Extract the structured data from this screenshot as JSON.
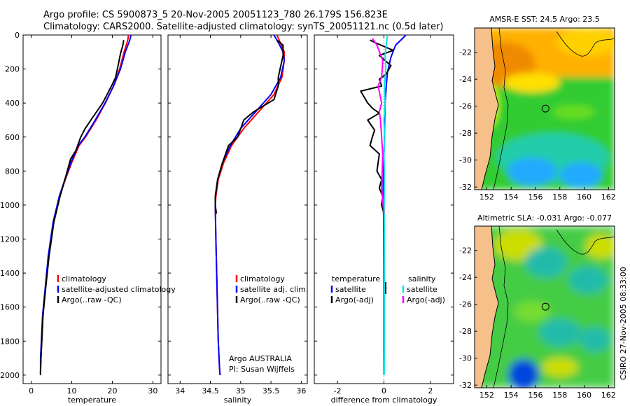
{
  "header": {
    "line1": "Argo profile: CS 5900873_5 20-Nov-2005 20051123_780 26.179S 156.823E",
    "line2": "Climatology: CARS2000. Satellite-adjusted climatology: synTS_20051121.nc (0.5d later)"
  },
  "side_stamp": "CSIRO 27-Nov-2005 08:33:00",
  "argo_note": {
    "line1": "Argo AUSTRALIA",
    "line2": "PI: Susan Wijffels"
  },
  "colors": {
    "climatology": "#ff0000",
    "satellite": "#0000ff",
    "argo": "#000000",
    "sal_satellite": "#00e5ee",
    "sal_argo": "#ff00ff",
    "land": "#f6c08a"
  },
  "chart_data": [
    {
      "id": "temperature",
      "type": "line",
      "xlabel": "temperature",
      "xlim": [
        -2,
        32
      ],
      "ylim": [
        0,
        2050
      ],
      "y_reversed": true,
      "xticks": [
        0,
        10,
        20,
        30
      ],
      "yticks": [
        0,
        200,
        400,
        600,
        800,
        1000,
        1200,
        1400,
        1600,
        1800,
        2000
      ],
      "legend": [
        "climatology",
        "satellite-adjusted climatology",
        "Argo(..raw -QC)"
      ],
      "series": [
        {
          "name": "climatology",
          "color": "#ff0000",
          "x": [
            24.0,
            23.8,
            22.9,
            21.8,
            20.3,
            18.3,
            16.0,
            13.4,
            11.8,
            10.0,
            8.4,
            7.0,
            5.5,
            4.3,
            3.5,
            2.9,
            2.6,
            2.4,
            2.3,
            2.3
          ],
          "y": [
            0,
            30,
            100,
            200,
            300,
            400,
            500,
            600,
            650,
            750,
            850,
            950,
            1100,
            1300,
            1500,
            1650,
            1800,
            1900,
            1980,
            2000
          ]
        },
        {
          "name": "satellite-adjusted climatology",
          "color": "#0000ff",
          "x": [
            24.6,
            24.3,
            23.2,
            22.0,
            20.3,
            18.2,
            15.8,
            13.2,
            11.6,
            9.8,
            8.3,
            6.9,
            5.4,
            4.2,
            3.4,
            2.8,
            2.5,
            2.3,
            2.3,
            2.3
          ],
          "y": [
            0,
            30,
            100,
            200,
            300,
            400,
            500,
            600,
            650,
            750,
            850,
            950,
            1100,
            1300,
            1500,
            1650,
            1800,
            1900,
            1980,
            2000
          ]
        },
        {
          "name": "Argo(..raw -QC)",
          "color": "#000000",
          "x": [
            22.8,
            22.6,
            22.0,
            21.6,
            20.8,
            19.8,
            17.6,
            15.3,
            13.3,
            12.2,
            11.0,
            9.7,
            8.3,
            7.1,
            5.6,
            4.4,
            3.5,
            2.9,
            2.6,
            2.4,
            2.3,
            2.3
          ],
          "y": [
            30,
            60,
            110,
            160,
            250,
            300,
            400,
            480,
            550,
            600,
            680,
            730,
            850,
            950,
            1100,
            1300,
            1500,
            1650,
            1800,
            1900,
            1980,
            2000
          ]
        }
      ]
    },
    {
      "id": "salinity",
      "type": "line",
      "xlabel": "salinity",
      "xlim": [
        33.8,
        36.1
      ],
      "ylim": [
        0,
        2050
      ],
      "y_reversed": true,
      "xticks": [
        34,
        34.5,
        35,
        35.5,
        36
      ],
      "legend": [
        "climatology",
        "satellite adj. clim.",
        "Argo(..raw -QC)"
      ],
      "series": [
        {
          "name": "climatology",
          "color": "#ff0000",
          "x": [
            35.6,
            35.66,
            35.72,
            35.72,
            35.68,
            35.55,
            35.3,
            35.05,
            34.85,
            34.72,
            34.63,
            34.59,
            34.58,
            34.59,
            34.61,
            34.63,
            34.65,
            34.66
          ],
          "y": [
            0,
            50,
            100,
            150,
            250,
            350,
            450,
            550,
            650,
            750,
            850,
            950,
            1000,
            1200,
            1500,
            1800,
            1950,
            2000
          ]
        },
        {
          "name": "satellite adj. clim.",
          "color": "#0000ff",
          "x": [
            35.55,
            35.63,
            35.7,
            35.72,
            35.66,
            35.5,
            35.25,
            35.0,
            34.83,
            34.7,
            34.62,
            34.58,
            34.58,
            34.59,
            34.61,
            34.63,
            34.65,
            34.66
          ],
          "y": [
            0,
            50,
            100,
            150,
            250,
            350,
            450,
            550,
            650,
            750,
            850,
            950,
            1000,
            1200,
            1500,
            1800,
            1950,
            2000
          ]
        },
        {
          "name": "Argo(..raw -QC)",
          "color": "#000000",
          "x": [
            35.6,
            35.7,
            35.7,
            35.65,
            35.62,
            35.62,
            35.55,
            35.22,
            35.05,
            34.95,
            34.8,
            34.7,
            34.62,
            34.58,
            34.58,
            34.6
          ],
          "y": [
            30,
            60,
            120,
            200,
            250,
            300,
            380,
            450,
            500,
            600,
            650,
            750,
            850,
            950,
            1000,
            1050
          ]
        }
      ]
    },
    {
      "id": "difference",
      "type": "line",
      "xlabel": "difference from climatology",
      "xlim": [
        -3.0,
        3.0
      ],
      "ylim": [
        0,
        2050
      ],
      "y_reversed": true,
      "xticks": [
        -2,
        0,
        2
      ],
      "legend_temperature": [
        "temperature",
        "satellite",
        "Argo(-adj)"
      ],
      "legend_salinity": [
        "salinity",
        "satellite",
        "Argo(-adj)"
      ],
      "series": [
        {
          "name": "temperature satellite",
          "color": "#0000ff",
          "x": [
            0.95,
            0.5,
            0.3,
            0.15,
            0.1,
            0.05,
            0.03,
            0.02,
            0.0,
            -0.02,
            -0.03,
            -0.02,
            -0.01,
            0.0,
            0.0
          ],
          "y": [
            0,
            60,
            130,
            220,
            300,
            400,
            500,
            600,
            700,
            800,
            900,
            1000,
            1200,
            1500,
            2000
          ]
        },
        {
          "name": "temperature Argo(-adj)",
          "color": "#000000",
          "x": [
            -0.6,
            -0.3,
            0.4,
            -0.2,
            0.3,
            0.1,
            -0.2,
            -0.1,
            -1.0,
            -0.7,
            -0.5,
            -0.2,
            -0.7,
            -0.4,
            -0.5,
            -0.6,
            -0.2,
            -0.3,
            -0.1,
            -0.2,
            -0.05,
            -0.1,
            0.0
          ],
          "y": [
            30,
            50,
            90,
            120,
            180,
            230,
            260,
            300,
            330,
            400,
            430,
            460,
            500,
            560,
            600,
            650,
            700,
            800,
            850,
            900,
            950,
            1000,
            1050
          ]
        },
        {
          "name": "salinity satellite",
          "color": "#00e5ee",
          "x": [
            0.15,
            0.1,
            0.05,
            0.08,
            0.02,
            0.05,
            0.0,
            0.03,
            0.0,
            0.02,
            0.01,
            0.02,
            0.02,
            0.01
          ],
          "y": [
            0,
            60,
            120,
            200,
            300,
            400,
            500,
            600,
            700,
            800,
            1000,
            1400,
            1800,
            2000
          ]
        },
        {
          "name": "salinity Argo(-adj)",
          "color": "#ff00ff",
          "x": [
            -0.5,
            -0.3,
            -0.05,
            -0.1,
            -0.25,
            -0.1,
            -0.2,
            -0.15,
            -0.1,
            -0.05,
            -0.1,
            0.0
          ],
          "y": [
            20,
            60,
            150,
            250,
            300,
            400,
            450,
            500,
            600,
            700,
            900,
            1050
          ]
        }
      ]
    },
    {
      "id": "sst_map",
      "type": "heatmap",
      "title": "AMSR-E SST: 24.5 Argo: 23.5",
      "xlim": [
        151,
        162.5
      ],
      "ylim": [
        -32.2,
        -20.2
      ],
      "xticks": [
        152,
        154,
        156,
        158,
        160,
        162
      ],
      "yticks": [
        -22,
        -24,
        -26,
        -28,
        -30,
        -32
      ],
      "float_position": {
        "lon": 156.823,
        "lat": -26.179
      }
    },
    {
      "id": "sla_map",
      "type": "heatmap",
      "title": "Altimetric SLA: -0.031 Argo: -0.077",
      "xlim": [
        151,
        162.5
      ],
      "ylim": [
        -32.2,
        -20.2
      ],
      "xticks": [
        152,
        154,
        156,
        158,
        160,
        162
      ],
      "yticks": [
        -22,
        -24,
        -26,
        -28,
        -30,
        -32
      ],
      "float_position": {
        "lon": 156.823,
        "lat": -26.179
      }
    }
  ]
}
